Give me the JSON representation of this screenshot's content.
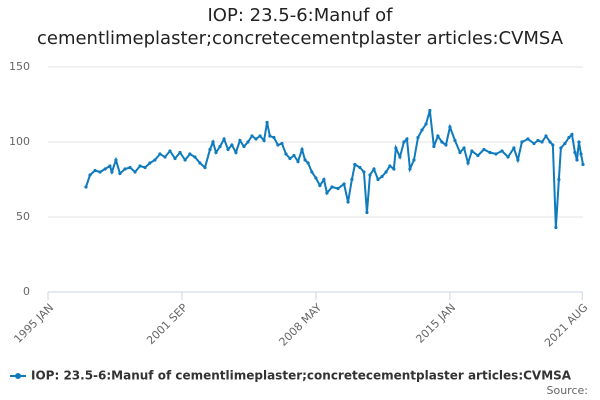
{
  "chart_data": {
    "type": "line",
    "title": "IOP: 23.5-6:Manuf of cementlimeplaster;concretecementplaster articles:CVMSA",
    "source": "Source:",
    "xlim": [
      1995,
      2021.62
    ],
    "xticks": [
      {
        "value": 1995,
        "label": "1995 JAN"
      },
      {
        "value": 2001.667,
        "label": "2001 SEP"
      },
      {
        "value": 2008.333,
        "label": "2008 MAY"
      },
      {
        "value": 2015,
        "label": "2015 JAN"
      },
      {
        "value": 2021.583,
        "label": "2021 AUG"
      }
    ],
    "ylim": [
      0,
      150
    ],
    "yticks": [
      0,
      50,
      100,
      150
    ],
    "grid": true,
    "x": [
      1996.89,
      1997.09,
      1997.34,
      1997.59,
      1997.84,
      1998.08,
      1998.18,
      1998.38,
      1998.58,
      1998.83,
      1999.08,
      1999.33,
      1999.58,
      1999.83,
      2000.07,
      2000.32,
      2000.57,
      2000.82,
      2001.07,
      2001.32,
      2001.57,
      2001.82,
      2002.06,
      2002.31,
      2002.56,
      2002.81,
      2003.06,
      2003.21,
      2003.36,
      2003.56,
      2003.76,
      2003.96,
      2004.15,
      2004.35,
      2004.55,
      2004.75,
      2004.95,
      2005.15,
      2005.35,
      2005.55,
      2005.75,
      2005.9,
      2006.04,
      2006.24,
      2006.44,
      2006.64,
      2006.84,
      2007.04,
      2007.24,
      2007.44,
      2007.64,
      2007.79,
      2007.94,
      2008.13,
      2008.33,
      2008.53,
      2008.73,
      2008.88,
      2009.13,
      2009.43,
      2009.73,
      2009.93,
      2010.12,
      2010.27,
      2010.52,
      2010.72,
      2010.87,
      2011.02,
      2011.22,
      2011.42,
      2011.62,
      2011.82,
      2012.01,
      2012.21,
      2012.31,
      2012.51,
      2012.71,
      2012.86,
      2013.01,
      2013.21,
      2013.41,
      2013.61,
      2013.81,
      2014.0,
      2014.2,
      2014.4,
      2014.6,
      2014.8,
      2015.0,
      2015.25,
      2015.5,
      2015.7,
      2015.9,
      2016.09,
      2016.39,
      2016.69,
      2016.99,
      2017.29,
      2017.59,
      2017.89,
      2018.18,
      2018.38,
      2018.58,
      2018.88,
      2019.18,
      2019.38,
      2019.58,
      2019.78,
      2019.98,
      2020.12,
      2020.27,
      2020.42,
      2020.52,
      2020.72,
      2020.92,
      2021.07,
      2021.22,
      2021.32,
      2021.42,
      2021.52,
      2021.62
    ],
    "series": [
      {
        "name": "IOP: 23.5-6:Manuf of cementlimeplaster;concretecementplaster articles:CVMSA",
        "color": "#0f7bbd",
        "values": [
          70,
          78,
          81,
          80,
          82,
          84,
          80,
          88,
          79,
          82,
          83,
          80,
          84,
          83,
          86,
          88,
          92,
          90,
          94,
          89,
          93,
          88,
          92,
          90,
          86,
          83,
          95,
          100,
          93,
          97,
          102,
          95,
          98,
          93,
          101,
          97,
          100,
          104,
          102,
          104,
          101,
          113,
          104,
          103,
          98,
          99,
          92,
          89,
          91,
          87,
          95,
          88,
          86,
          80,
          76,
          71,
          75,
          66,
          70,
          69,
          72,
          60,
          75,
          85,
          83,
          80,
          53,
          78,
          82,
          75,
          77,
          80,
          84,
          82,
          96,
          90,
          100,
          102,
          82,
          88,
          103,
          108,
          112,
          121,
          97,
          104,
          100,
          98,
          110,
          101,
          93,
          96,
          86,
          94,
          91,
          95,
          93,
          92,
          94,
          90,
          96,
          88,
          100,
          102,
          99,
          101,
          100,
          104,
          100,
          98,
          43,
          75,
          96,
          99,
          103,
          105,
          93,
          88,
          100,
          92,
          85
        ]
      }
    ]
  }
}
